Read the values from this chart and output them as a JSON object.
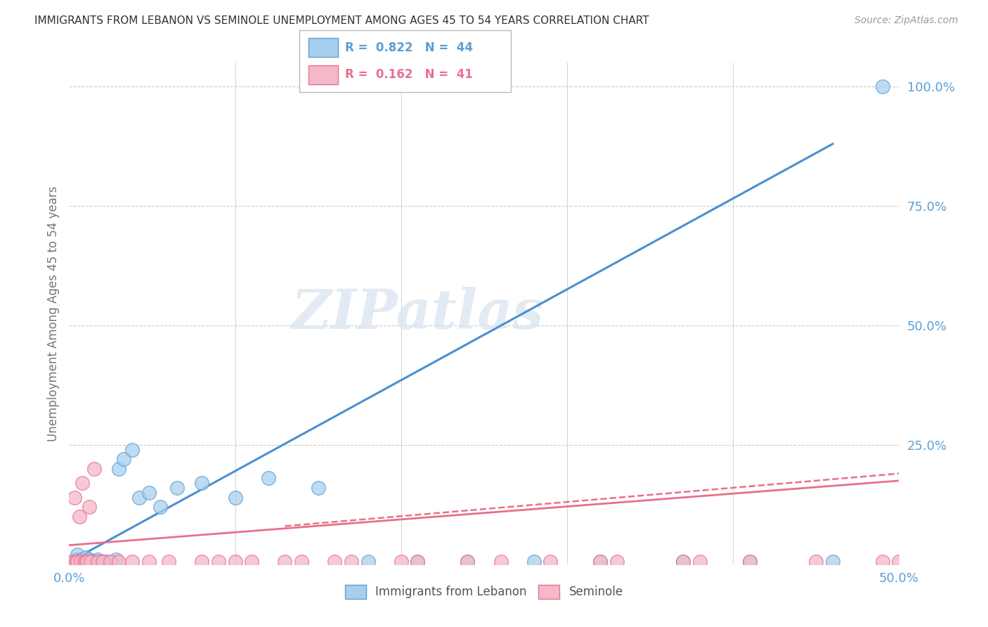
{
  "title": "IMMIGRANTS FROM LEBANON VS SEMINOLE UNEMPLOYMENT AMONG AGES 45 TO 54 YEARS CORRELATION CHART",
  "source": "Source: ZipAtlas.com",
  "xlim": [
    0,
    0.5
  ],
  "ylim": [
    0,
    1.05
  ],
  "ylabel": "Unemployment Among Ages 45 to 54 years",
  "legend1_r": "0.822",
  "legend1_n": "44",
  "legend2_r": "0.162",
  "legend2_n": "41",
  "blue_color": "#A8CFEE",
  "pink_color": "#F5B8C8",
  "blue_edge_color": "#5B9FD4",
  "pink_edge_color": "#E87090",
  "blue_line_color": "#4A90D0",
  "pink_line_color": "#E8708A",
  "watermark": "ZIPatlas",
  "blue_scatter_x": [
    0.002,
    0.003,
    0.004,
    0.005,
    0.005,
    0.006,
    0.007,
    0.007,
    0.008,
    0.009,
    0.01,
    0.01,
    0.011,
    0.012,
    0.013,
    0.014,
    0.015,
    0.016,
    0.017,
    0.018,
    0.02,
    0.022,
    0.025,
    0.028,
    0.03,
    0.033,
    0.038,
    0.042,
    0.048,
    0.055,
    0.065,
    0.08,
    0.1,
    0.12,
    0.15,
    0.18,
    0.21,
    0.24,
    0.28,
    0.32,
    0.37,
    0.41,
    0.46,
    0.49
  ],
  "blue_scatter_y": [
    0.005,
    0.005,
    0.01,
    0.005,
    0.02,
    0.005,
    0.005,
    0.01,
    0.005,
    0.005,
    0.005,
    0.015,
    0.005,
    0.01,
    0.005,
    0.005,
    0.005,
    0.005,
    0.01,
    0.005,
    0.005,
    0.005,
    0.005,
    0.01,
    0.2,
    0.22,
    0.24,
    0.14,
    0.15,
    0.12,
    0.16,
    0.17,
    0.14,
    0.18,
    0.16,
    0.005,
    0.005,
    0.005,
    0.005,
    0.005,
    0.005,
    0.005,
    0.005,
    1.0
  ],
  "pink_scatter_x": [
    0.002,
    0.003,
    0.004,
    0.005,
    0.006,
    0.007,
    0.008,
    0.009,
    0.01,
    0.011,
    0.012,
    0.013,
    0.015,
    0.017,
    0.02,
    0.025,
    0.03,
    0.038,
    0.048,
    0.06,
    0.08,
    0.1,
    0.13,
    0.16,
    0.2,
    0.24,
    0.29,
    0.33,
    0.37,
    0.41,
    0.45,
    0.49,
    0.5,
    0.38,
    0.32,
    0.26,
    0.21,
    0.17,
    0.14,
    0.11,
    0.09
  ],
  "pink_scatter_y": [
    0.005,
    0.14,
    0.005,
    0.005,
    0.1,
    0.005,
    0.17,
    0.005,
    0.005,
    0.005,
    0.12,
    0.005,
    0.2,
    0.005,
    0.005,
    0.005,
    0.005,
    0.005,
    0.005,
    0.005,
    0.005,
    0.005,
    0.005,
    0.005,
    0.005,
    0.005,
    0.005,
    0.005,
    0.005,
    0.005,
    0.005,
    0.005,
    0.005,
    0.005,
    0.005,
    0.005,
    0.005,
    0.005,
    0.005,
    0.005,
    0.005
  ],
  "blue_trend_x": [
    0.0,
    0.46
  ],
  "blue_trend_y": [
    0.005,
    0.88
  ],
  "pink_trend_x": [
    0.0,
    0.5
  ],
  "pink_trend_y": [
    0.04,
    0.175
  ],
  "pink_dash_trend_x": [
    0.13,
    0.5
  ],
  "pink_dash_trend_y": [
    0.08,
    0.19
  ],
  "grid_color": "#CCCCCC",
  "background_color": "#FFFFFF",
  "tick_color": "#5B9FD4",
  "label_color": "#777777"
}
